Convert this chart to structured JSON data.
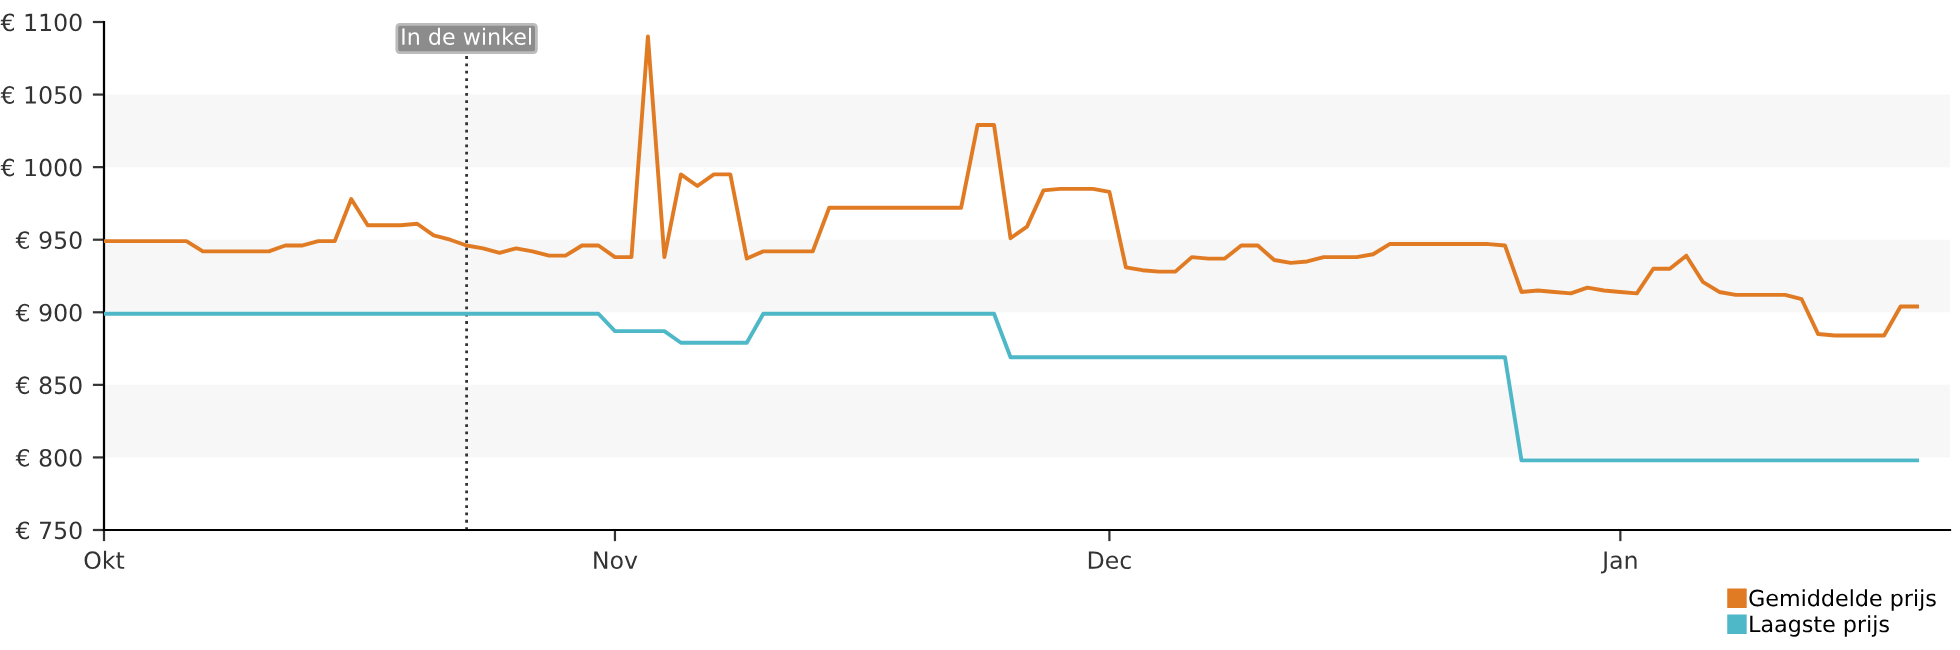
{
  "chart_data": {
    "type": "line",
    "categories": [
      "Okt",
      null,
      null,
      null,
      null,
      null,
      null,
      null,
      null,
      null,
      null,
      null,
      null,
      null,
      null,
      null,
      null,
      null,
      null,
      null,
      null,
      null,
      null,
      null,
      null,
      null,
      null,
      null,
      null,
      null,
      null,
      "Nov",
      null,
      null,
      null,
      null,
      null,
      null,
      null,
      null,
      null,
      null,
      null,
      null,
      null,
      null,
      null,
      null,
      null,
      null,
      null,
      null,
      null,
      null,
      null,
      null,
      null,
      null,
      null,
      null,
      null,
      "Dec",
      null,
      null,
      null,
      null,
      null,
      null,
      null,
      null,
      null,
      null,
      null,
      null,
      null,
      null,
      null,
      null,
      null,
      null,
      null,
      null,
      null,
      null,
      null,
      null,
      null,
      null,
      null,
      null,
      null,
      null,
      "Jan",
      null,
      null,
      null,
      null,
      null,
      null,
      null,
      null,
      null,
      null,
      null,
      null,
      null,
      null,
      null,
      null,
      null,
      null
    ],
    "ylim": [
      750,
      1100
    ],
    "yticks": [
      {
        "value": 750,
        "label": "€ 750"
      },
      {
        "value": 800,
        "label": "€ 800"
      },
      {
        "value": 850,
        "label": "€ 850"
      },
      {
        "value": 900,
        "label": "€ 900"
      },
      {
        "value": 950,
        "label": "€ 950"
      },
      {
        "value": 1000,
        "label": "€ 1000"
      },
      {
        "value": 1050,
        "label": "€ 1050"
      },
      {
        "value": 1100,
        "label": "€ 1100"
      }
    ],
    "legend": "bottom right",
    "marker": "none",
    "line_style": "solid",
    "bands": [
      {
        "axis": "y",
        "from": 800,
        "to": 850,
        "color": "#f7f7f7"
      },
      {
        "axis": "y",
        "from": 900,
        "to": 950,
        "color": "#f7f7f7"
      },
      {
        "axis": "y",
        "from": 1000,
        "to": 1050,
        "color": "#f7f7f7"
      }
    ],
    "annotations": [
      "In de winkel"
    ],
    "series": [
      {
        "name": "Gemiddelde prijs",
        "color": "#e07b24",
        "values": [
          949,
          949,
          949,
          949,
          949,
          949,
          942,
          942,
          942,
          942,
          942,
          946,
          946,
          949,
          949,
          978,
          960,
          960,
          960,
          961,
          953,
          950,
          946,
          944,
          941,
          944,
          942,
          939,
          939,
          946,
          946,
          938,
          938,
          1090,
          938,
          995,
          987,
          995,
          995,
          937,
          942,
          942,
          942,
          942,
          972,
          972,
          972,
          972,
          972,
          972,
          972,
          972,
          972,
          1029,
          1029,
          951,
          959,
          984,
          985,
          985,
          985,
          983,
          931,
          929,
          928,
          928,
          938,
          937,
          937,
          946,
          946,
          936,
          934,
          935,
          938,
          938,
          938,
          940,
          947,
          947,
          947,
          947,
          947,
          947,
          947,
          946,
          914,
          915,
          914,
          913,
          917,
          915,
          914,
          913,
          930,
          930,
          939,
          921,
          914,
          912,
          912,
          912,
          912,
          909,
          885,
          884,
          884,
          884,
          884,
          904,
          904
        ]
      },
      {
        "name": "Laagste prijs",
        "color": "#4fb8c8",
        "values": [
          899,
          899,
          899,
          899,
          899,
          899,
          899,
          899,
          899,
          899,
          899,
          899,
          899,
          899,
          899,
          899,
          899,
          899,
          899,
          899,
          899,
          899,
          899,
          899,
          899,
          899,
          899,
          899,
          899,
          899,
          899,
          887,
          887,
          887,
          887,
          879,
          879,
          879,
          879,
          879,
          899,
          899,
          899,
          899,
          899,
          899,
          899,
          899,
          899,
          899,
          899,
          899,
          899,
          899,
          899,
          869,
          869,
          869,
          869,
          869,
          869,
          869,
          869,
          869,
          869,
          869,
          869,
          869,
          869,
          869,
          869,
          869,
          869,
          869,
          869,
          869,
          869,
          869,
          869,
          869,
          869,
          869,
          869,
          869,
          869,
          869,
          798,
          798,
          798,
          798,
          798,
          798,
          798,
          798,
          798,
          798,
          798,
          798,
          798,
          798,
          798,
          798,
          798,
          798,
          798,
          798,
          798,
          798,
          798,
          798,
          798
        ]
      }
    ]
  }
}
